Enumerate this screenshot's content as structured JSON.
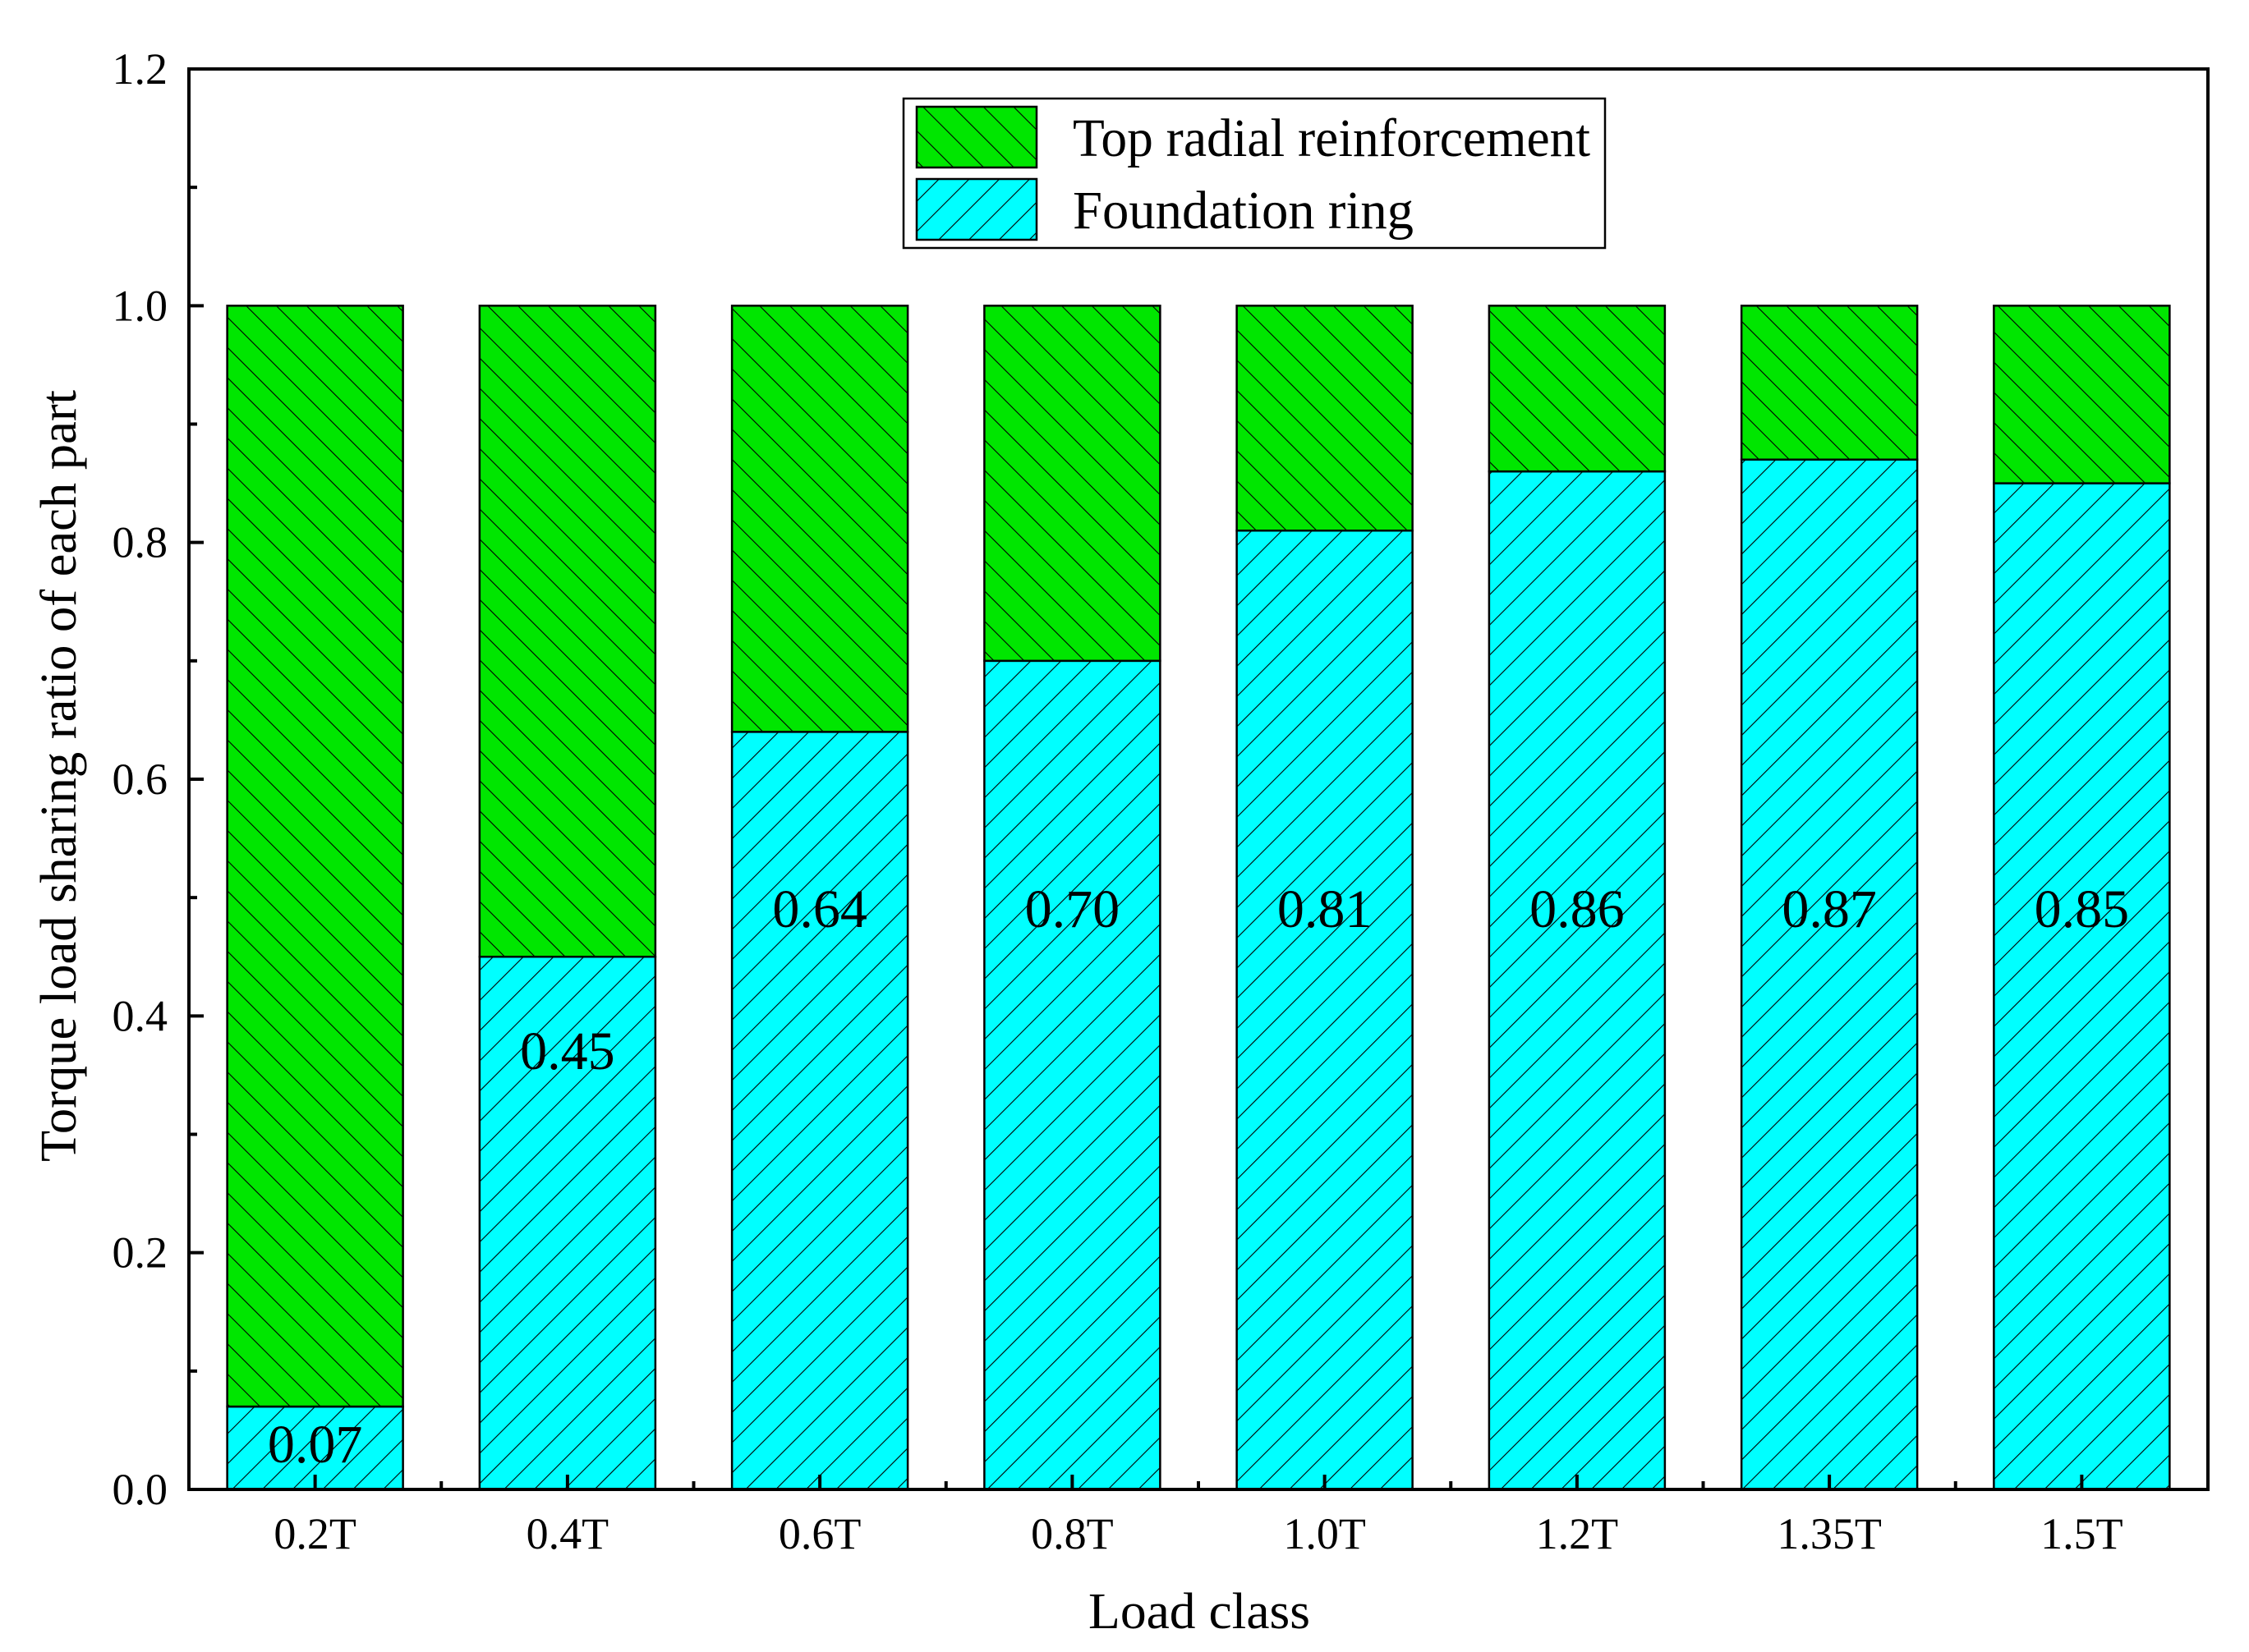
{
  "chart_data": {
    "type": "bar",
    "stacked": true,
    "title": "",
    "xlabel": "Load class",
    "ylabel": "Torque load sharing ratio of each part",
    "ylim": [
      0,
      1.2
    ],
    "yticks": [
      "0.0",
      "0.2",
      "0.4",
      "0.6",
      "0.8",
      "1.0",
      "1.2"
    ],
    "categories": [
      "0.2T",
      "0.4T",
      "0.6T",
      "0.8T",
      "1.0T",
      "1.2T",
      "1.35T",
      "1.5T"
    ],
    "series": [
      {
        "name": "Foundation ring",
        "color": "#00ffff",
        "hatch": "forward-diagonal",
        "values": [
          0.07,
          0.45,
          0.64,
          0.7,
          0.81,
          0.86,
          0.87,
          0.85
        ],
        "labels": [
          "0.07",
          "0.45",
          "0.64",
          "0.70",
          "0.81",
          "0.86",
          "0.87",
          "0.85"
        ]
      },
      {
        "name": "Top radial reinforcement",
        "color": "#00e600",
        "hatch": "back-diagonal",
        "values": [
          0.93,
          0.55,
          0.36,
          0.3,
          0.19,
          0.14,
          0.13,
          0.15
        ]
      }
    ],
    "legend": {
      "position": "top-center",
      "entries": [
        "Top radial reinforcement",
        "Foundation ring"
      ]
    },
    "grid": false
  }
}
